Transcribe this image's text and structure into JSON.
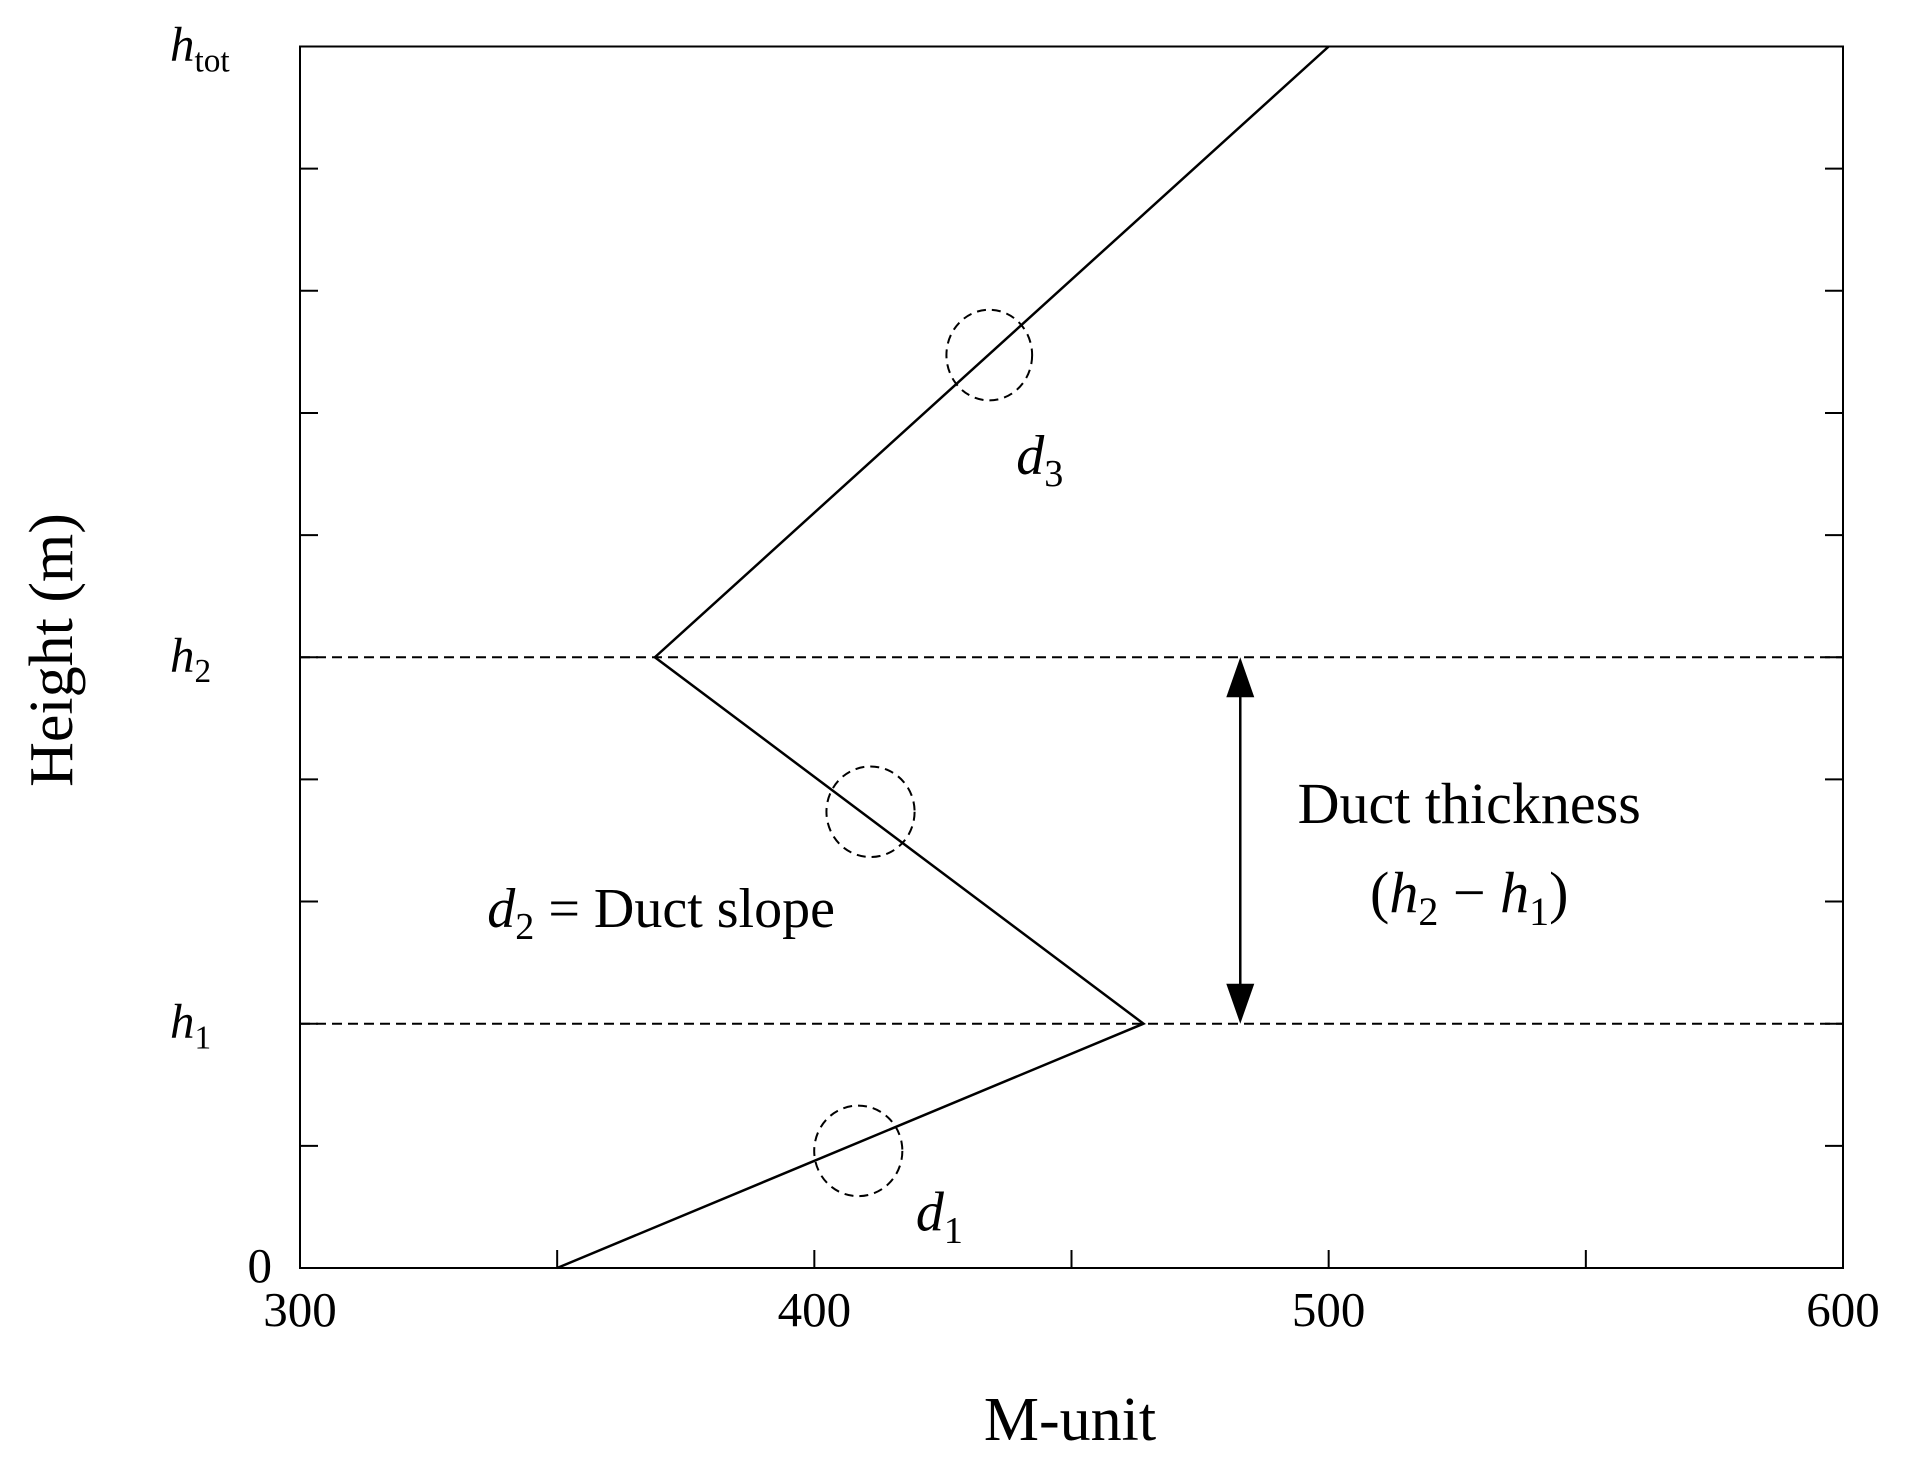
{
  "chart_data": {
    "type": "line",
    "xlabel": "M-unit",
    "ylabel": "Height (m)",
    "x": [
      350,
      464,
      369,
      500
    ],
    "values": [
      0,
      2,
      5,
      10
    ],
    "color": "#000000",
    "xlim": [
      300,
      600
    ],
    "xticks": [
      300,
      400,
      500,
      600
    ],
    "xminor_ticks": [
      350,
      450,
      550
    ],
    "ylim": [
      0,
      10
    ],
    "yticks": [
      0,
      {
        "value": 2,
        "label": "h",
        "subscript": "1"
      },
      {
        "value": 5,
        "label": "h",
        "subscript": "2"
      },
      {
        "value": 10,
        "label": "h",
        "subscript": "tot"
      }
    ],
    "yminor_ticks": [
      1,
      3,
      4,
      6,
      7,
      8,
      9
    ],
    "reference_lines": [
      2,
      5
    ],
    "annotations": [
      {
        "label": "d",
        "subscript": "1"
      },
      {
        "label": "d",
        "subscript": "2",
        "text": " = Duct slope"
      },
      {
        "label": "d",
        "subscript": "3"
      }
    ],
    "thickness_label": "Duct thickness",
    "thickness_formula": [
      "(",
      "h",
      "2",
      " − ",
      "h",
      "1",
      ")"
    ]
  }
}
